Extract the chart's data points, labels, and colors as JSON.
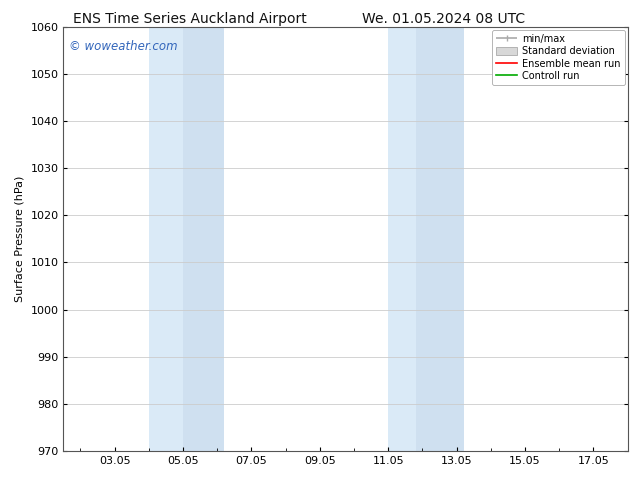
{
  "title_left": "ENS Time Series Auckland Airport",
  "title_right": "We. 01.05.2024 08 UTC",
  "ylabel": "Surface Pressure (hPa)",
  "ylim": [
    970,
    1060
  ],
  "yticks": [
    970,
    980,
    990,
    1000,
    1010,
    1020,
    1030,
    1040,
    1050,
    1060
  ],
  "xlim_start": 1.5,
  "xlim_end": 18.0,
  "xtick_labels": [
    "03.05",
    "05.05",
    "07.05",
    "09.05",
    "11.05",
    "13.05",
    "15.05",
    "17.05"
  ],
  "xtick_positions": [
    3.0,
    5.0,
    7.0,
    9.0,
    11.0,
    13.0,
    15.0,
    17.0
  ],
  "shaded_bands": [
    {
      "xmin": 4.0,
      "xmax": 5.0,
      "color": "#daeaf7"
    },
    {
      "xmin": 5.0,
      "xmax": 6.2,
      "color": "#cfe0f0"
    },
    {
      "xmin": 11.0,
      "xmax": 11.8,
      "color": "#daeaf7"
    },
    {
      "xmin": 11.8,
      "xmax": 13.2,
      "color": "#cfe0f0"
    }
  ],
  "watermark_text": "© woweather.com",
  "watermark_color": "#3366bb",
  "background_color": "#ffffff",
  "axes_bg_color": "#ffffff",
  "grid_color": "#cccccc",
  "title_fontsize": 10,
  "axis_label_fontsize": 8,
  "tick_fontsize": 8,
  "legend_labels": [
    "min/max",
    "Standard deviation",
    "Ensemble mean run",
    "Controll run"
  ],
  "legend_line_colors": [
    "#aaaaaa",
    "#cccccc",
    "#ff0000",
    "#00aa00"
  ]
}
